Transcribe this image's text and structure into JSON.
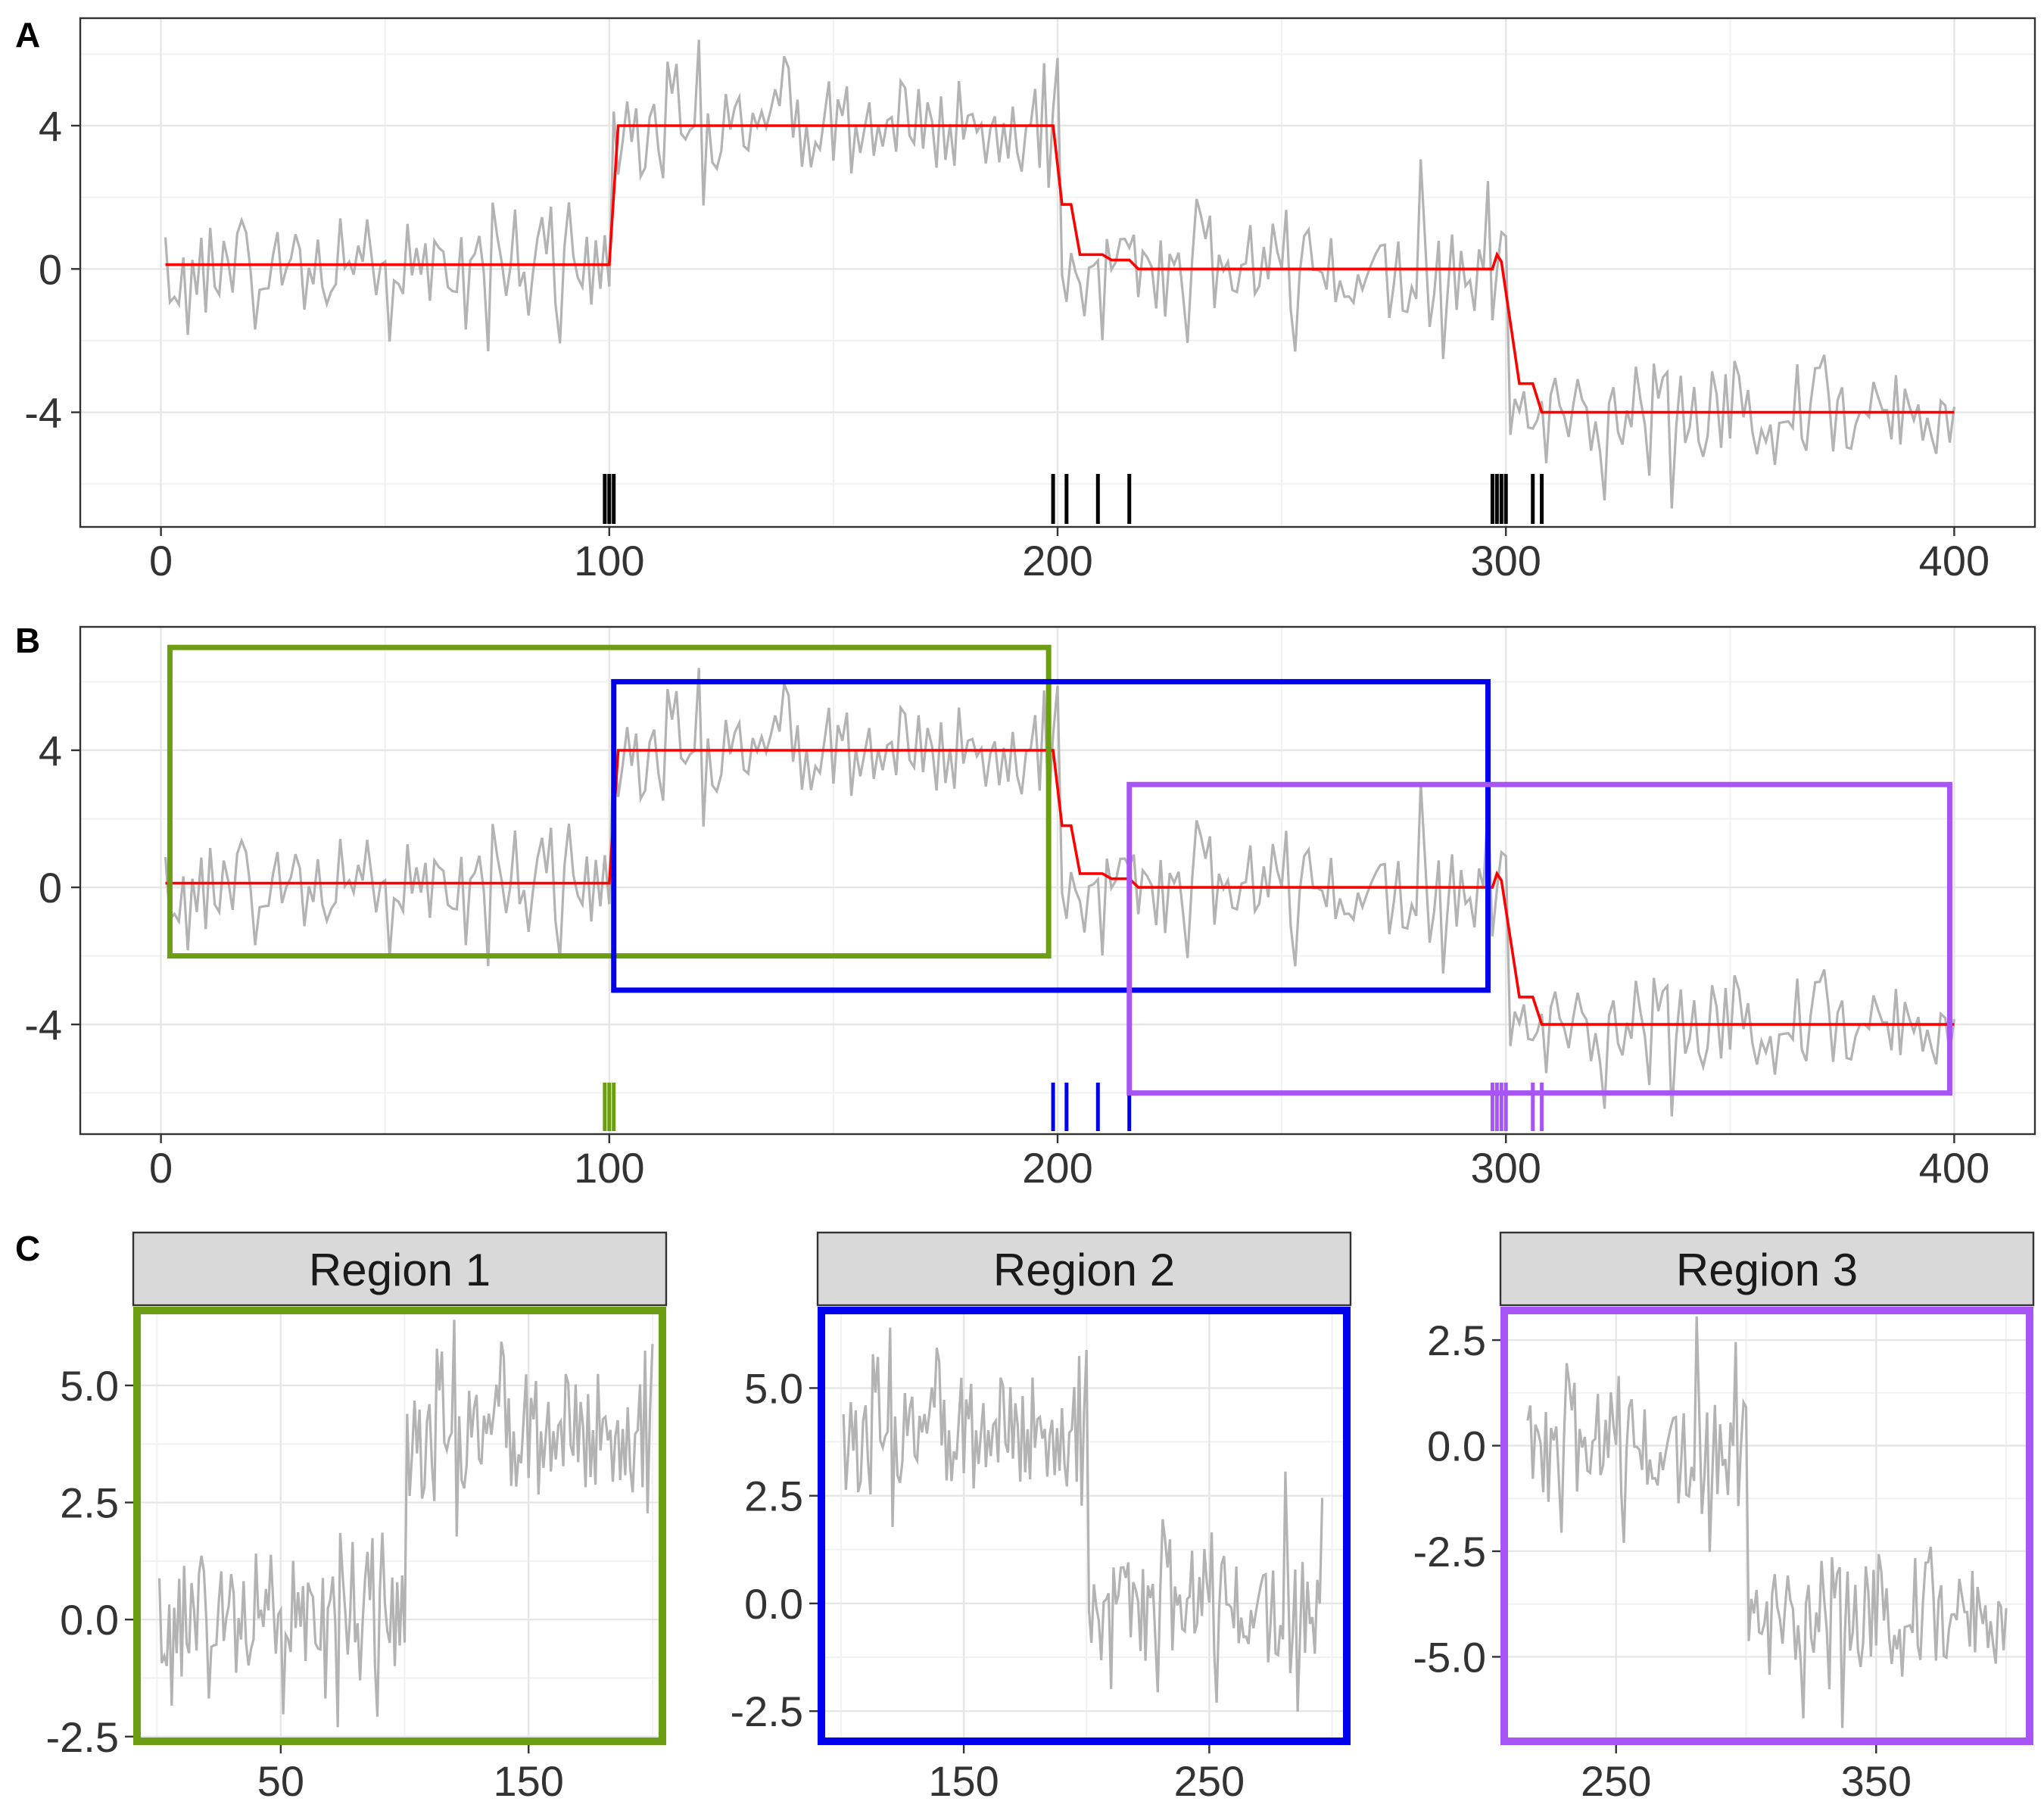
{
  "chart_data": [
    {
      "panel": "A",
      "type": "line",
      "panel_label": "A",
      "x_ticks": [
        0,
        100,
        200,
        300,
        400
      ],
      "y_ticks": [
        4,
        0,
        -4
      ],
      "y_tick_labels": [
        "4",
        "0",
        "-4"
      ],
      "xlim": [
        -18,
        418
      ],
      "ylim": [
        -7.2,
        7.0
      ],
      "series": [
        {
          "name": "observed",
          "color": "#b3b3b3",
          "generator": "noisy piecewise constant, n = 400, sd about 1"
        },
        {
          "name": "fitted mean",
          "color": "#ff0000",
          "points": [
            [
              1,
              0.12
            ],
            [
              100,
              0.12
            ],
            [
              102,
              4.0
            ],
            [
              199,
              4.0
            ],
            [
              201,
              1.8
            ],
            [
              203,
              1.8
            ],
            [
              205,
              0.4
            ],
            [
              210,
              0.4
            ],
            [
              212,
              0.25
            ],
            [
              216,
              0.25
            ],
            [
              218,
              0.0
            ],
            [
              297,
              0.0
            ],
            [
              298,
              0.4
            ],
            [
              299,
              0.2
            ],
            [
              303,
              -3.2
            ],
            [
              306,
              -3.2
            ],
            [
              308,
              -4.0
            ],
            [
              400,
              -4.0
            ]
          ]
        }
      ],
      "changepoint_rug": [
        99,
        100,
        101,
        199,
        202,
        209,
        216,
        297,
        298,
        299,
        300,
        306,
        308
      ],
      "rug_color": "#000000"
    },
    {
      "panel": "B",
      "type": "line",
      "panel_label": "B",
      "x_ticks": [
        0,
        100,
        200,
        300,
        400
      ],
      "y_ticks": [
        4,
        0,
        -4
      ],
      "y_tick_labels": [
        "4",
        "0",
        "-4"
      ],
      "xlim": [
        -18,
        418
      ],
      "ylim": [
        -7.2,
        7.6
      ],
      "series": [
        {
          "name": "observed",
          "color": "#b3b3b3"
        },
        {
          "name": "fitted mean",
          "color": "#ff0000"
        }
      ],
      "regions": [
        {
          "name": "Region 1",
          "x": [
            2,
            198
          ],
          "y": [
            -2.0,
            7.0
          ],
          "color": "#6b9e12"
        },
        {
          "name": "Region 2",
          "x": [
            101,
            296
          ],
          "y": [
            -3.0,
            6.0
          ],
          "color": "#0000ee"
        },
        {
          "name": "Region 3",
          "x": [
            216,
            399
          ],
          "y": [
            -6.0,
            3.0
          ],
          "color": "#a855f7"
        }
      ],
      "changepoint_rug": [
        {
          "x": [
            99,
            100,
            101
          ],
          "color": "#6b9e12"
        },
        {
          "x": [
            199,
            202,
            209,
            216
          ],
          "color": "#0000ee"
        },
        {
          "x": [
            297,
            298,
            299,
            300,
            306,
            308
          ],
          "color": "#a855f7"
        }
      ]
    },
    {
      "panel": "C",
      "type": "line",
      "panel_label": "C",
      "title": "Region 1",
      "x_range": [
        1,
        200
      ],
      "x_ticks": [
        50,
        150
      ],
      "y_ticks": [
        5.0,
        2.5,
        0.0,
        -2.5
      ],
      "y_tick_labels": [
        "5.0",
        "2.5",
        "0.0",
        "-2.5"
      ],
      "xlim": [
        -8,
        204
      ],
      "ylim": [
        -2.6,
        6.6
      ],
      "color": "#6b9e12"
    },
    {
      "panel": "C",
      "type": "line",
      "title": "Region 2",
      "x_range": [
        101,
        296
      ],
      "x_ticks": [
        150,
        250
      ],
      "y_ticks": [
        5.0,
        2.5,
        0.0,
        -2.5
      ],
      "y_tick_labels": [
        "5.0",
        "2.5",
        "0.0",
        "-2.5"
      ],
      "xlim": [
        92,
        306
      ],
      "ylim": [
        -3.2,
        6.8
      ],
      "color": "#0000ee"
    },
    {
      "panel": "C",
      "type": "line",
      "title": "Region 3",
      "x_range": [
        216,
        400
      ],
      "x_ticks": [
        250,
        350
      ],
      "y_ticks": [
        2.5,
        0.0,
        -2.5,
        -5.0
      ],
      "y_tick_labels": [
        "2.5",
        "0.0",
        "-2.5",
        "-5.0"
      ],
      "xlim": [
        207,
        409
      ],
      "ylim": [
        -7.0,
        3.2
      ],
      "color": "#a855f7"
    }
  ]
}
